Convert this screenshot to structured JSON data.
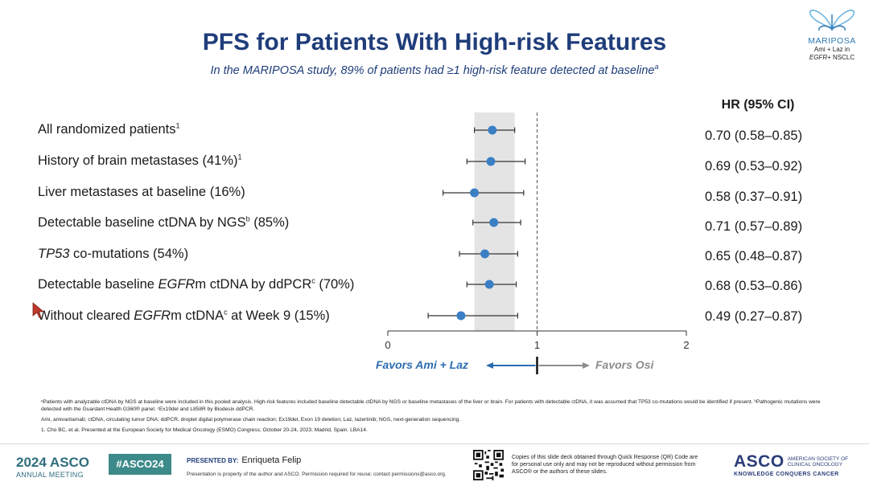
{
  "header": {
    "title": "PFS for Patients With High-risk Features",
    "subtitle": "In the MARIPOSA study, 89% of patients had ≥1 high-risk feature detected at baseline",
    "subtitle_sup": "a"
  },
  "logo": {
    "name": "MARIPOSA",
    "line1": "Ami + Laz in",
    "line2_italic": "EGFR",
    "line2_rest": "+ NSCLC"
  },
  "hr_header": "HR (95% CI)",
  "rows": [
    {
      "pre": "All randomized patients",
      "ital": "",
      "mid": "",
      "sup": "1",
      "post": "",
      "hr_text": "0.70 (0.58–0.85)"
    },
    {
      "pre": "History of brain metastases (41%)",
      "ital": "",
      "mid": "",
      "sup": "1",
      "post": "",
      "hr_text": "0.69 (0.53–0.92)"
    },
    {
      "pre": "Liver metastases at baseline (16%)",
      "ital": "",
      "mid": "",
      "sup": "",
      "post": "",
      "hr_text": "0.58 (0.37–0.91)"
    },
    {
      "pre": "Detectable baseline ctDNA by NGS",
      "ital": "",
      "mid": "",
      "sup": "b",
      "post": " (85%)",
      "hr_text": "0.71 (0.57–0.89)"
    },
    {
      "pre": "",
      "ital": "TP53",
      "mid": " co-mutations (54%)",
      "sup": "",
      "post": "",
      "hr_text": "0.65 (0.48–0.87)"
    },
    {
      "pre": "Detectable baseline ",
      "ital": "EGFR",
      "mid": "m ctDNA by ddPCR",
      "sup": "c",
      "post": " (70%)",
      "hr_text": "0.68 (0.53–0.86)"
    },
    {
      "pre": "Without cleared ",
      "ital": "EGFR",
      "mid": "m ctDNA",
      "sup": "c",
      "post": " at Week 9 (15%)",
      "hr_text": "0.49 (0.27–0.87)"
    }
  ],
  "chart_data": {
    "type": "scatter",
    "subtype": "forest-plot",
    "categories": [
      "All randomized patients",
      "History of brain metastases (41%)",
      "Liver metastases at baseline (16%)",
      "Detectable baseline ctDNA by NGS (85%)",
      "TP53 co-mutations (54%)",
      "Detectable baseline EGFRm ctDNA by ddPCR (70%)",
      "Without cleared EGFRm ctDNA at Week 9 (15%)"
    ],
    "hr": [
      0.7,
      0.69,
      0.58,
      0.71,
      0.65,
      0.68,
      0.49
    ],
    "ci_low": [
      0.58,
      0.53,
      0.37,
      0.57,
      0.48,
      0.53,
      0.27
    ],
    "ci_high": [
      0.85,
      0.92,
      0.91,
      0.89,
      0.87,
      0.86,
      0.87
    ],
    "xlim": [
      0,
      2
    ],
    "xticks": [
      "0",
      "1",
      "2"
    ],
    "reference_line": 1,
    "shaded_band": [
      0.58,
      0.85
    ],
    "point_color": "#3a7fc4",
    "left_label": "Favors Ami + Laz",
    "right_label": "Favors Osi",
    "left_color": "#2b6cb0",
    "right_color": "#8c8c8c"
  },
  "footnotes": [
    "ᵃPatients with analyzable ctDNA by NGS at baseline were included in this pooled analysis. High-risk features included baseline detectable ctDNA by NGS or baseline metastases of the liver or brain. For patients with detectable ctDNA, it was assumed that TP53 co-mutations would be identified if present. ᵇPathogenic mutations were detected with the Guardant Health G360® panel. ᶜEx19del and L858R by Biodesix ddPCR.",
    "Ami, amivantamab; ctDNA, circulating tumor DNA; ddPCR, droplet digital polymerase chain reaction; Ex19del, Exon 19 deletion; Laz, lazertinib; NGS, next-generation sequencing.",
    "1. Cho BC, et al. Presented at the European Society for Medical Oncology (ESMO) Congress; October 20-24, 2023; Madrid, Spain. LBA14."
  ],
  "footer": {
    "meeting_year": "2024 ASCO",
    "meeting_sub": "ANNUAL MEETING",
    "hashtag": "#ASCO24",
    "presented_by": "PRESENTED BY:",
    "presenter": "Enriqueta Felip",
    "presented_note": "Presentation is property of the author and ASCO. Permission required for reuse; contact permissions@asco.org.",
    "qr_note": "Copies of this slide deck obtained through Quick Response (QR) Code are for personal use only and may not be reproduced without permission from ASCO® or the authors of these slides.",
    "asco": "ASCO",
    "asco_side1": "AMERICAN SOCIETY OF",
    "asco_side2": "CLINICAL ONCOLOGY",
    "asco_tag": "KNOWLEDGE CONQUERS CANCER"
  }
}
